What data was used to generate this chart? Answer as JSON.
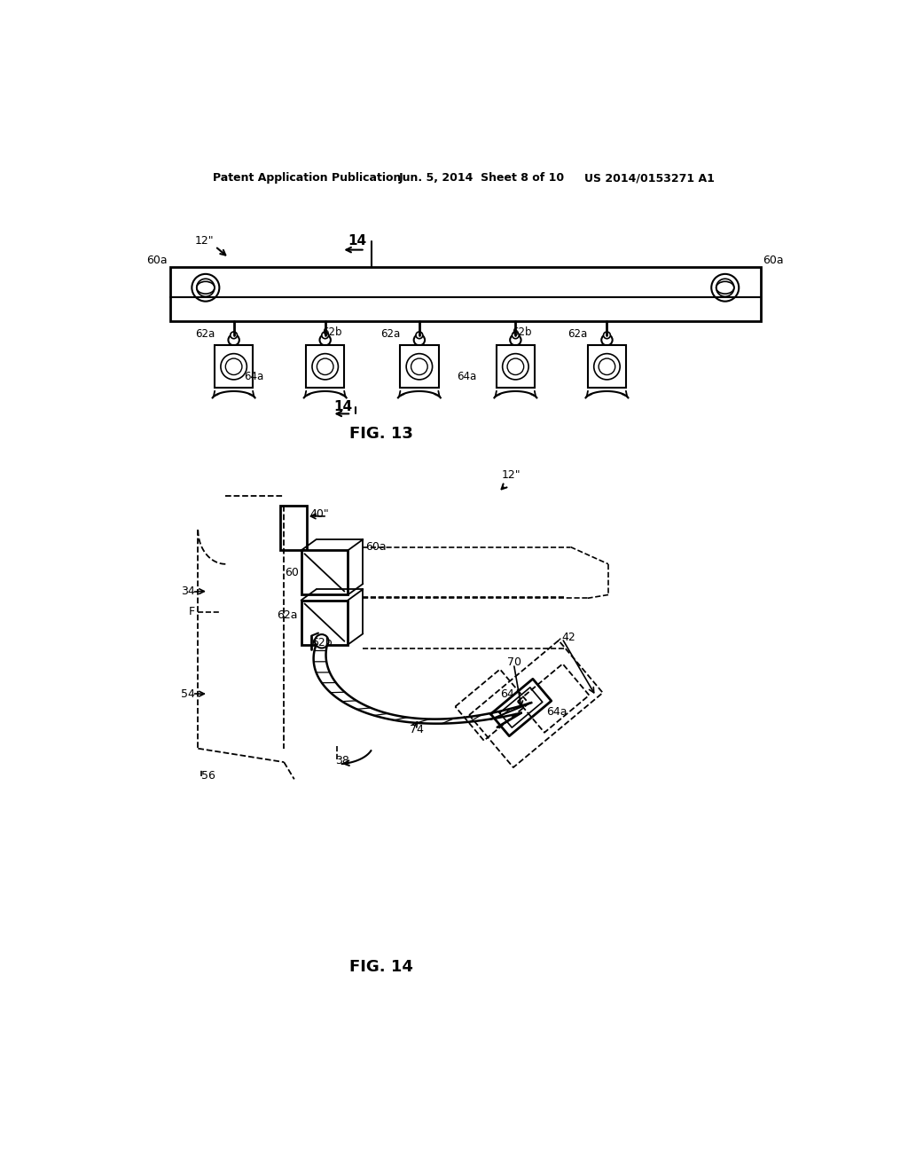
{
  "bg_color": "#ffffff",
  "line_color": "#000000",
  "header_line1": "Patent Application Publication",
  "header_line2": "Jun. 5, 2014  Sheet 8 of 10",
  "header_line3": "US 2014/0153271 A1",
  "fig13_label": "FIG. 13",
  "fig14_label": "FIG. 14"
}
